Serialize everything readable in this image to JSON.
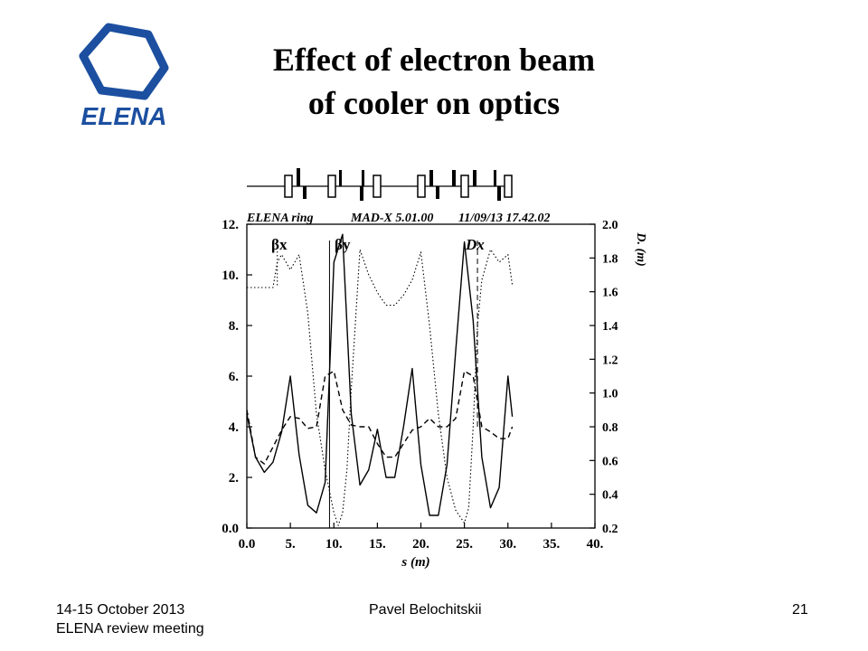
{
  "slide": {
    "title_line1": "Effect of electron beam",
    "title_line2": "of cooler on optics",
    "logo_text": "ELENA",
    "footer_date": "14-15 October 2013",
    "footer_event": "ELENA  review meeting",
    "footer_author": "Pavel Belochitskii",
    "page_number": "21"
  },
  "colors": {
    "logo_blue": "#1c4fa0",
    "plot_line": "#000000"
  },
  "chart_data": {
    "type": "line",
    "header_left": "ELENA ring",
    "header_mid": "MAD-X 5.01.00",
    "header_right": "11/09/13 17.42.02",
    "xlabel": "s (m)",
    "y2label": "D. (m)",
    "xlim": [
      0,
      40
    ],
    "ylim": [
      0,
      12
    ],
    "y2lim": [
      0.2,
      2.0
    ],
    "xticks": [
      "0.0",
      "5.",
      "10.",
      "15.",
      "20.",
      "25.",
      "30.",
      "35.",
      "40."
    ],
    "yticks": [
      "0.0",
      "2.",
      "4.",
      "6.",
      "8.",
      "10.",
      "12."
    ],
    "y2ticks": [
      "0.2",
      "0.4",
      "0.6",
      "0.8",
      "1.0",
      "1.2",
      "1.4",
      "1.6",
      "1.8",
      "2.0"
    ],
    "legend": {
      "beta_x": "βx",
      "beta_y": "βy",
      "disp": "Dx"
    },
    "series": [
      {
        "name": "βx",
        "axis": "left",
        "style": "solid",
        "x": [
          0,
          1,
          2,
          3,
          4,
          5,
          6,
          7,
          8,
          9,
          10,
          11,
          12,
          13,
          14,
          15,
          16,
          17,
          18,
          19,
          20,
          21,
          22,
          23,
          24,
          25,
          26,
          27,
          28,
          29,
          30,
          30.5
        ],
        "y": [
          4.5,
          2.8,
          2.2,
          2.6,
          3.8,
          6.0,
          2.9,
          0.9,
          0.6,
          1.8,
          10.5,
          11.6,
          4.5,
          1.7,
          2.3,
          3.9,
          2.0,
          2.0,
          4.0,
          6.3,
          2.5,
          0.5,
          0.5,
          2.5,
          7.0,
          11.3,
          8.2,
          2.8,
          0.8,
          1.6,
          6.0,
          4.4
        ]
      },
      {
        "name": "βy",
        "axis": "left",
        "style": "dotted",
        "x": [
          0,
          3,
          3.5,
          4,
          5,
          6,
          7,
          8,
          9,
          10,
          10.5,
          11,
          11.5,
          12,
          13,
          14,
          15,
          16,
          17,
          18,
          19,
          20,
          21,
          22,
          23,
          24,
          25,
          25.5,
          26,
          26.5,
          27,
          28,
          29,
          30,
          30.5
        ],
        "y": [
          9.5,
          9.5,
          10.5,
          10.8,
          10.2,
          10.8,
          8.5,
          4.5,
          2.3,
          0.6,
          0.1,
          0.6,
          2.3,
          5.5,
          11.0,
          10.0,
          9.3,
          8.8,
          8.8,
          9.2,
          9.8,
          10.9,
          8.0,
          4.5,
          2.0,
          0.7,
          0.2,
          0.8,
          4.0,
          8.0,
          9.8,
          11.0,
          10.5,
          10.8,
          9.6
        ]
      },
      {
        "name": "Dx",
        "axis": "right",
        "style": "dashed",
        "x": [
          0,
          1,
          2,
          3,
          4,
          5,
          6,
          7,
          8,
          9,
          10,
          11,
          12,
          13,
          14,
          15,
          16,
          17,
          18,
          19,
          20,
          21,
          22,
          23,
          24,
          25,
          26,
          27,
          28,
          29,
          30,
          30.5
        ],
        "y": [
          0.9,
          0.62,
          0.58,
          0.68,
          0.78,
          0.86,
          0.85,
          0.79,
          0.8,
          1.1,
          1.13,
          0.9,
          0.81,
          0.8,
          0.8,
          0.7,
          0.62,
          0.62,
          0.7,
          0.78,
          0.8,
          0.85,
          0.8,
          0.8,
          0.85,
          1.13,
          1.1,
          0.8,
          0.77,
          0.73,
          0.73,
          0.8
        ]
      }
    ]
  }
}
